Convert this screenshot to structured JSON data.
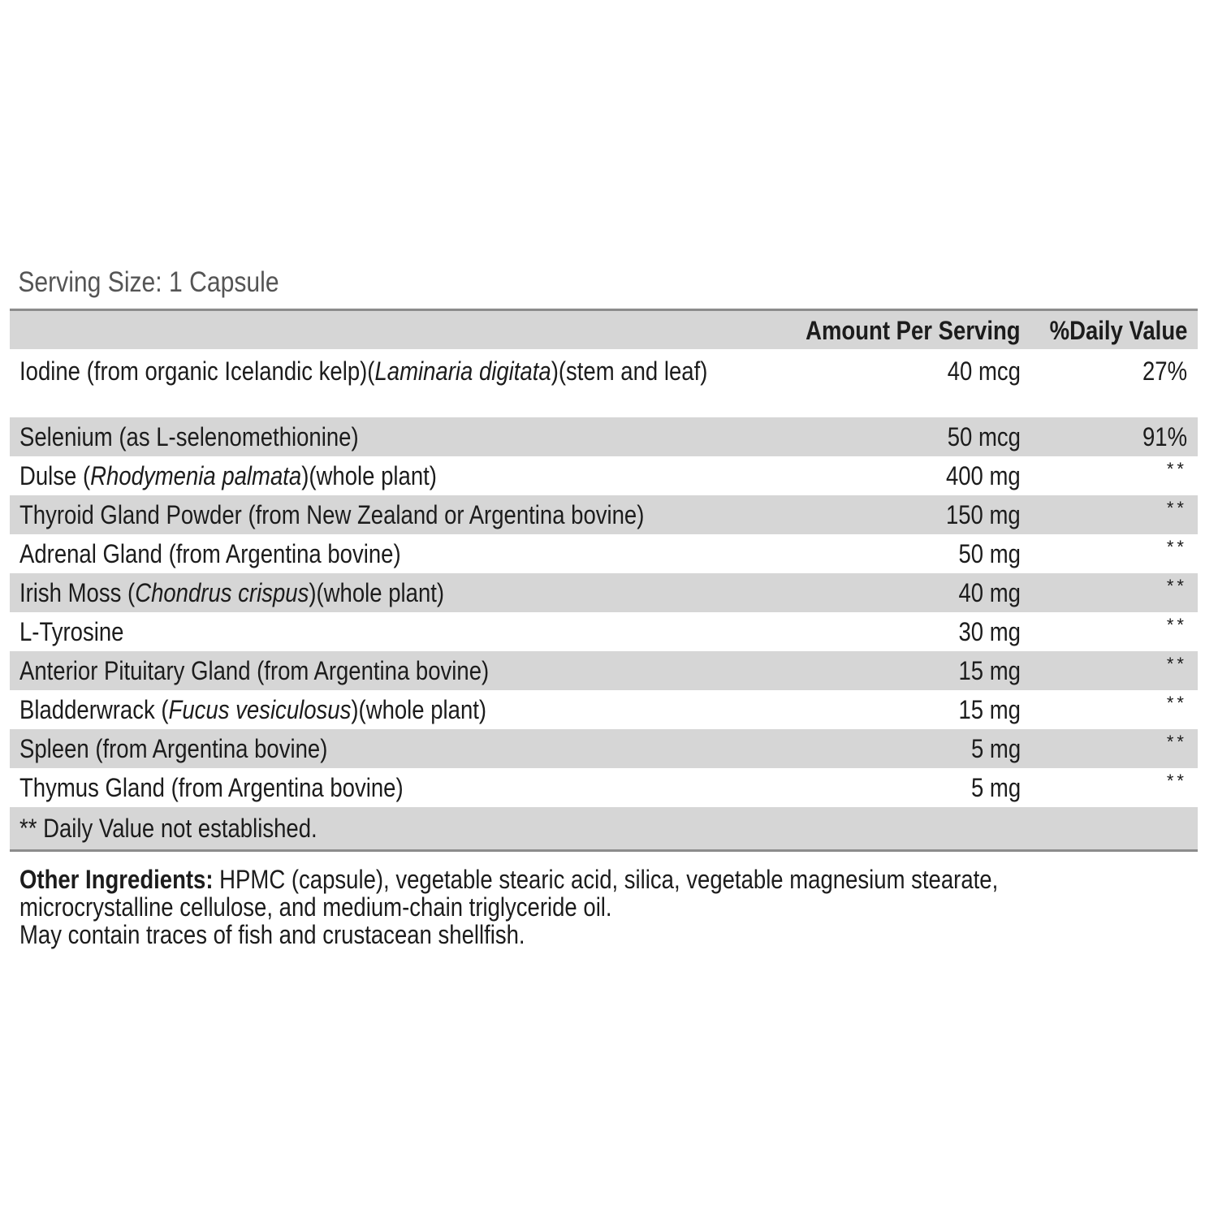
{
  "serving_size": "Serving Size: 1 Capsule",
  "header": {
    "amount": "Amount Per Serving",
    "daily_value": "%Daily Value"
  },
  "ingredients": [
    {
      "name_parts": [
        "Iodine (from organic Icelandic kelp)(",
        "Laminaria digitata",
        ")(stem and leaf)"
      ],
      "amount": "40 mcg",
      "dv": "27%"
    },
    {
      "name_parts": [
        "Selenium (as L-selenomethionine)"
      ],
      "amount": "50 mcg",
      "dv": "91%"
    },
    {
      "name_parts": [
        "Dulse (",
        "Rhodymenia palmata",
        ")(whole plant)"
      ],
      "amount": "400 mg",
      "dv": "**"
    },
    {
      "name_parts": [
        "Thyroid Gland Powder (from New Zealand or Argentina bovine)"
      ],
      "amount": "150 mg",
      "dv": "**"
    },
    {
      "name_parts": [
        "Adrenal Gland (from Argentina bovine)"
      ],
      "amount": "50 mg",
      "dv": "**"
    },
    {
      "name_parts": [
        "Irish Moss (",
        "Chondrus crispus",
        ")(whole plant)"
      ],
      "amount": "40 mg",
      "dv": "**"
    },
    {
      "name_parts": [
        "L-Tyrosine"
      ],
      "amount": "30 mg",
      "dv": "**"
    },
    {
      "name_parts": [
        "Anterior Pituitary Gland (from Argentina bovine)"
      ],
      "amount": "15 mg",
      "dv": "**"
    },
    {
      "name_parts": [
        "Bladderwrack (",
        "Fucus vesiculosus",
        ")(whole plant)"
      ],
      "amount": "15 mg",
      "dv": "**"
    },
    {
      "name_parts": [
        "Spleen (from Argentina bovine)"
      ],
      "amount": "5 mg",
      "dv": "**"
    },
    {
      "name_parts": [
        "Thymus Gland (from Argentina bovine)"
      ],
      "amount": "5 mg",
      "dv": "**"
    }
  ],
  "footnote": "** Daily Value not established.",
  "other_ingredients": {
    "label": "Other Ingredients:",
    "text": " HPMC (capsule), vegetable stearic acid, silica, vegetable magnesium stearate,",
    "text2": "microcrystalline cellulose, and medium-chain triglyceride oil.",
    "allergen": "May contain traces of fish and crustacean shellfish."
  }
}
